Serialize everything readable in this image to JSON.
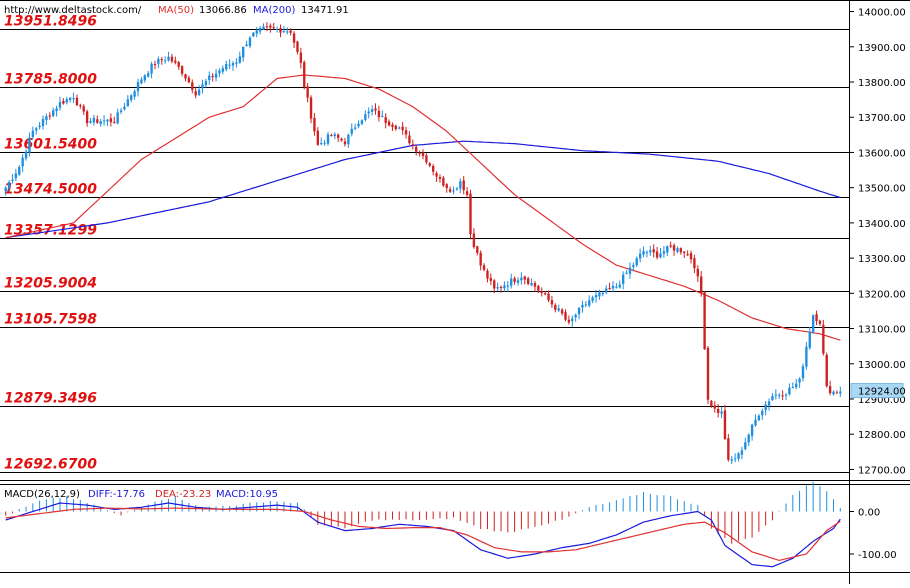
{
  "header": {
    "url": "http://www.deltastock.com/",
    "ma50_label": "MA(50)",
    "ma50_value": "13066.86",
    "ma200_label": "MA(200)",
    "ma200_value": "13471.91"
  },
  "macd_header": {
    "label": "MACD(26,12,9)",
    "diff": "DIFF:-17.76",
    "dea": "DEA:-23.23",
    "macd": "MACD:10.95"
  },
  "colors": {
    "bull": "#1e8fe0",
    "bear": "#d02020",
    "ma50": "#e03030",
    "ma200": "#1a1adc",
    "level_text": "#e01010",
    "level_line": "#000000",
    "price_tag_bg": "#a9d8f5"
  },
  "chart_data": [
    {
      "type": "candlestick",
      "ylim": [
        12670,
        14030
      ],
      "y_ticks": [
        14000,
        13900,
        13800,
        13700,
        13600,
        13500,
        13400,
        13300,
        13200,
        13100,
        13000,
        12900,
        12800,
        12700
      ],
      "y_tick_labels": [
        "14000.00",
        "13900.00",
        "13800.00",
        "13700.00",
        "13600.00",
        "13500.00",
        "13400.00",
        "13300.00",
        "13200.00",
        "13100.00",
        "13000.00",
        "12900.00",
        "12800.00",
        "12700.00"
      ],
      "current_price": 12924,
      "current_price_label": "12924.00",
      "levels": [
        {
          "value": 13951.8496,
          "label": "13951.8496"
        },
        {
          "value": 13785.8,
          "label": "13785.8000"
        },
        {
          "value": 13601.54,
          "label": "13601.5400"
        },
        {
          "value": 13474.5,
          "label": "13474.5000"
        },
        {
          "value": 13357.1299,
          "label": "13357.1299"
        },
        {
          "value": 13205.9004,
          "label": "13205.9004"
        },
        {
          "value": 13105.7598,
          "label": "13105.7598"
        },
        {
          "value": 12879.3496,
          "label": "12879.3496"
        },
        {
          "value": 12692.67,
          "label": "12692.6700"
        }
      ],
      "price_anchors": [
        [
          0,
          13500
        ],
        [
          4,
          13560
        ],
        [
          8,
          13660
        ],
        [
          12,
          13700
        ],
        [
          16,
          13740
        ],
        [
          20,
          13760
        ],
        [
          24,
          13690
        ],
        [
          28,
          13690
        ],
        [
          32,
          13690
        ],
        [
          36,
          13750
        ],
        [
          40,
          13810
        ],
        [
          44,
          13855
        ],
        [
          48,
          13870
        ],
        [
          52,
          13830
        ],
        [
          56,
          13770
        ],
        [
          60,
          13810
        ],
        [
          64,
          13840
        ],
        [
          68,
          13860
        ],
        [
          72,
          13930
        ],
        [
          76,
          13950
        ],
        [
          80,
          13950
        ],
        [
          84,
          13945
        ],
        [
          87,
          13850
        ],
        [
          88,
          13790
        ],
        [
          92,
          13620
        ],
        [
          96,
          13650
        ],
        [
          100,
          13630
        ],
        [
          104,
          13690
        ],
        [
          108,
          13720
        ],
        [
          112,
          13690
        ],
        [
          116,
          13670
        ],
        [
          120,
          13620
        ],
        [
          124,
          13580
        ],
        [
          128,
          13520
        ],
        [
          132,
          13490
        ],
        [
          134,
          13520
        ],
        [
          136,
          13480
        ],
        [
          137,
          13370
        ],
        [
          140,
          13280
        ],
        [
          144,
          13210
        ],
        [
          148,
          13230
        ],
        [
          152,
          13250
        ],
        [
          156,
          13220
        ],
        [
          160,
          13180
        ],
        [
          164,
          13140
        ],
        [
          166,
          13110
        ],
        [
          168,
          13140
        ],
        [
          172,
          13180
        ],
        [
          176,
          13200
        ],
        [
          180,
          13220
        ],
        [
          184,
          13270
        ],
        [
          188,
          13320
        ],
        [
          192,
          13310
        ],
        [
          196,
          13330
        ],
        [
          200,
          13320
        ],
        [
          202,
          13300
        ],
        [
          203,
          13280
        ],
        [
          205,
          13200
        ],
        [
          207,
          12900
        ],
        [
          209,
          12870
        ],
        [
          211,
          12860
        ],
        [
          213,
          12720
        ],
        [
          216,
          12740
        ],
        [
          219,
          12800
        ],
        [
          222,
          12860
        ],
        [
          226,
          12910
        ],
        [
          230,
          12920
        ],
        [
          234,
          12950
        ],
        [
          236,
          13050
        ],
        [
          238,
          13140
        ],
        [
          240,
          13120
        ],
        [
          242,
          12930
        ],
        [
          244,
          12920
        ],
        [
          246,
          12924
        ]
      ],
      "candle_count": 247,
      "ma50": [
        [
          0,
          13358
        ],
        [
          20,
          13400
        ],
        [
          40,
          13580
        ],
        [
          60,
          13700
        ],
        [
          70,
          13730
        ],
        [
          80,
          13810
        ],
        [
          88,
          13820
        ],
        [
          100,
          13810
        ],
        [
          110,
          13780
        ],
        [
          120,
          13730
        ],
        [
          130,
          13660
        ],
        [
          140,
          13570
        ],
        [
          150,
          13480
        ],
        [
          160,
          13410
        ],
        [
          170,
          13340
        ],
        [
          180,
          13280
        ],
        [
          190,
          13250
        ],
        [
          200,
          13220
        ],
        [
          210,
          13180
        ],
        [
          220,
          13130
        ],
        [
          230,
          13100
        ],
        [
          240,
          13085
        ],
        [
          246,
          13067
        ]
      ],
      "ma200": [
        [
          0,
          13358
        ],
        [
          30,
          13400
        ],
        [
          60,
          13460
        ],
        [
          80,
          13520
        ],
        [
          100,
          13580
        ],
        [
          120,
          13620
        ],
        [
          135,
          13632
        ],
        [
          150,
          13625
        ],
        [
          170,
          13605
        ],
        [
          190,
          13595
        ],
        [
          210,
          13575
        ],
        [
          225,
          13540
        ],
        [
          240,
          13490
        ],
        [
          246,
          13472
        ]
      ]
    },
    {
      "type": "macd",
      "ylim": [
        -140,
        60
      ],
      "y_ticks": [
        0,
        -100
      ],
      "y_tick_labels": [
        "0.00",
        "-100.00"
      ],
      "diff": [
        [
          0,
          -20
        ],
        [
          8,
          0
        ],
        [
          16,
          20
        ],
        [
          24,
          15
        ],
        [
          32,
          5
        ],
        [
          40,
          10
        ],
        [
          48,
          20
        ],
        [
          56,
          10
        ],
        [
          64,
          5
        ],
        [
          72,
          10
        ],
        [
          80,
          15
        ],
        [
          86,
          10
        ],
        [
          92,
          -25
        ],
        [
          100,
          -45
        ],
        [
          108,
          -40
        ],
        [
          116,
          -30
        ],
        [
          124,
          -35
        ],
        [
          132,
          -45
        ],
        [
          140,
          -90
        ],
        [
          148,
          -110
        ],
        [
          156,
          -100
        ],
        [
          164,
          -85
        ],
        [
          172,
          -75
        ],
        [
          180,
          -55
        ],
        [
          188,
          -25
        ],
        [
          196,
          -10
        ],
        [
          204,
          0
        ],
        [
          208,
          -20
        ],
        [
          212,
          -80
        ],
        [
          220,
          -125
        ],
        [
          226,
          -130
        ],
        [
          232,
          -110
        ],
        [
          238,
          -70
        ],
        [
          244,
          -40
        ],
        [
          246,
          -18
        ]
      ],
      "dea": [
        [
          0,
          -15
        ],
        [
          10,
          -5
        ],
        [
          20,
          5
        ],
        [
          30,
          8
        ],
        [
          40,
          6
        ],
        [
          50,
          8
        ],
        [
          60,
          6
        ],
        [
          70,
          5
        ],
        [
          80,
          5
        ],
        [
          88,
          0
        ],
        [
          96,
          -20
        ],
        [
          104,
          -35
        ],
        [
          112,
          -40
        ],
        [
          120,
          -38
        ],
        [
          128,
          -38
        ],
        [
          136,
          -55
        ],
        [
          144,
          -85
        ],
        [
          152,
          -95
        ],
        [
          160,
          -95
        ],
        [
          168,
          -90
        ],
        [
          176,
          -75
        ],
        [
          184,
          -60
        ],
        [
          192,
          -45
        ],
        [
          200,
          -30
        ],
        [
          206,
          -25
        ],
        [
          212,
          -50
        ],
        [
          220,
          -95
        ],
        [
          228,
          -115
        ],
        [
          236,
          -100
        ],
        [
          242,
          -45
        ],
        [
          246,
          -23
        ]
      ],
      "hist": [
        [
          0,
          -10
        ],
        [
          10,
          25
        ],
        [
          18,
          35
        ],
        [
          24,
          20
        ],
        [
          34,
          -10
        ],
        [
          44,
          25
        ],
        [
          50,
          35
        ],
        [
          58,
          10
        ],
        [
          68,
          15
        ],
        [
          78,
          25
        ],
        [
          86,
          20
        ],
        [
          92,
          -30
        ],
        [
          100,
          -40
        ],
        [
          108,
          -20
        ],
        [
          116,
          -20
        ],
        [
          124,
          -20
        ],
        [
          132,
          -15
        ],
        [
          140,
          -40
        ],
        [
          148,
          -50
        ],
        [
          156,
          -35
        ],
        [
          164,
          -20
        ],
        [
          172,
          10
        ],
        [
          180,
          25
        ],
        [
          188,
          45
        ],
        [
          196,
          35
        ],
        [
          204,
          15
        ],
        [
          208,
          -40
        ],
        [
          214,
          -75
        ],
        [
          220,
          -60
        ],
        [
          226,
          -20
        ],
        [
          232,
          40
        ],
        [
          238,
          70
        ],
        [
          242,
          50
        ],
        [
          246,
          10
        ]
      ]
    }
  ]
}
